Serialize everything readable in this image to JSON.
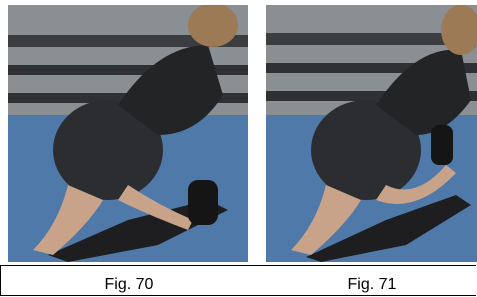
{
  "figures": [
    {
      "caption": "Fig. 70"
    },
    {
      "caption": "Fig. 71"
    }
  ]
}
